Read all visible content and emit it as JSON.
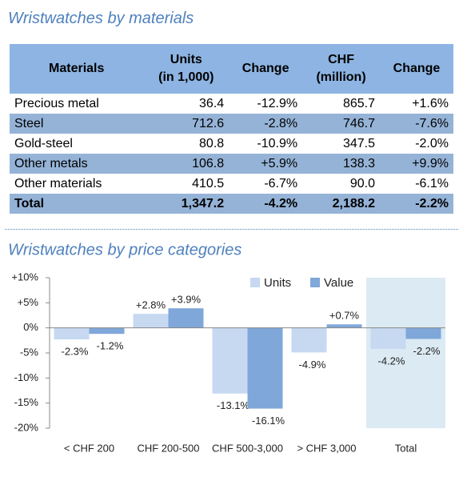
{
  "table": {
    "title": "Wristwatches by materials",
    "headers": [
      [
        "Materials"
      ],
      [
        "Units",
        "(in 1,000)"
      ],
      [
        "Change"
      ],
      [
        "CHF",
        "(million)"
      ],
      [
        "Change"
      ]
    ],
    "rows": [
      [
        "Precious metal",
        "36.4",
        "-12.9%",
        "865.7",
        "+1.6%"
      ],
      [
        "Steel",
        "712.6",
        "-2.8%",
        "746.7",
        "-7.6%"
      ],
      [
        "Gold-steel",
        "80.8",
        "-10.9%",
        "347.5",
        "-2.0%"
      ],
      [
        "Other metals",
        "106.8",
        "+5.9%",
        "138.3",
        "+9.9%"
      ],
      [
        "Other materials",
        "410.5",
        "-6.7%",
        "90.0",
        "-6.1%"
      ],
      [
        "Total",
        "1,347.2",
        "-4.2%",
        "2,188.2",
        "-2.2%"
      ]
    ]
  },
  "chart_data": {
    "type": "bar",
    "title": "Wristwatches by price categories",
    "categories": [
      "< CHF 200",
      "CHF 200-500",
      "CHF 500-3,000",
      "> CHF 3,000",
      "Total"
    ],
    "series": [
      {
        "name": "Units",
        "color": "#c6d9f1",
        "values": [
          -2.3,
          2.8,
          -13.1,
          -4.9,
          -4.2
        ],
        "value_labels": [
          "-2.3%",
          "+2.8%",
          "-13.1%",
          "-4.9%",
          "-4.2%"
        ]
      },
      {
        "name": "Value",
        "color": "#7fa7d9",
        "values": [
          -1.2,
          3.9,
          -16.1,
          0.7,
          -2.2
        ],
        "value_labels": [
          "-1.2%",
          "+3.9%",
          "-16.1%",
          "+0.7%",
          "-2.2%"
        ]
      }
    ],
    "ylim": [
      -20,
      10
    ],
    "yticks": [
      {
        "value": 10,
        "label": "+10%"
      },
      {
        "value": 5,
        "label": "+5%"
      },
      {
        "value": 0,
        "label": "0%"
      },
      {
        "value": -5,
        "label": "-5%"
      },
      {
        "value": -10,
        "label": "-10%"
      },
      {
        "value": -15,
        "label": "-15%"
      },
      {
        "value": -20,
        "label": "-20%"
      }
    ],
    "highlight_index": 4,
    "highlight_color": "#dbeaf3",
    "legend": "top-right",
    "grid": false
  }
}
